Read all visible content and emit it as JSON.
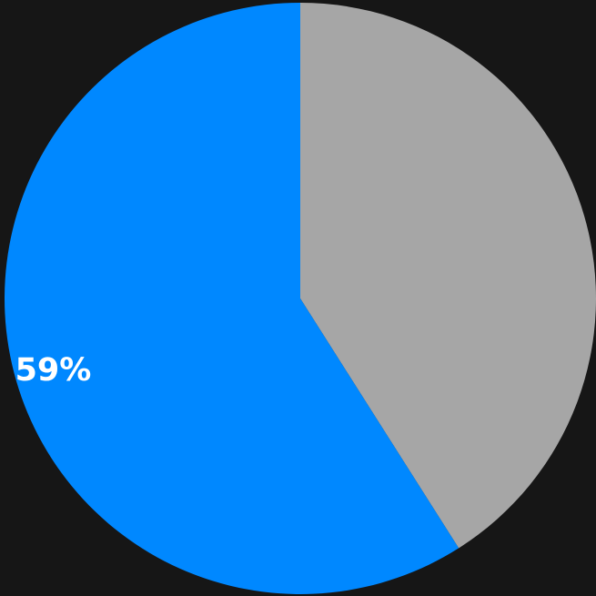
{
  "chart_data": {
    "type": "pie",
    "title": "",
    "start": "12 o'clock",
    "direction": "clockwise",
    "slices": [
      {
        "value": 41,
        "color": "#a6a6a6",
        "label": ""
      },
      {
        "value": 59,
        "color": "#0088ff",
        "label": "59%"
      }
    ]
  },
  "colors": {
    "background": "#161616"
  }
}
